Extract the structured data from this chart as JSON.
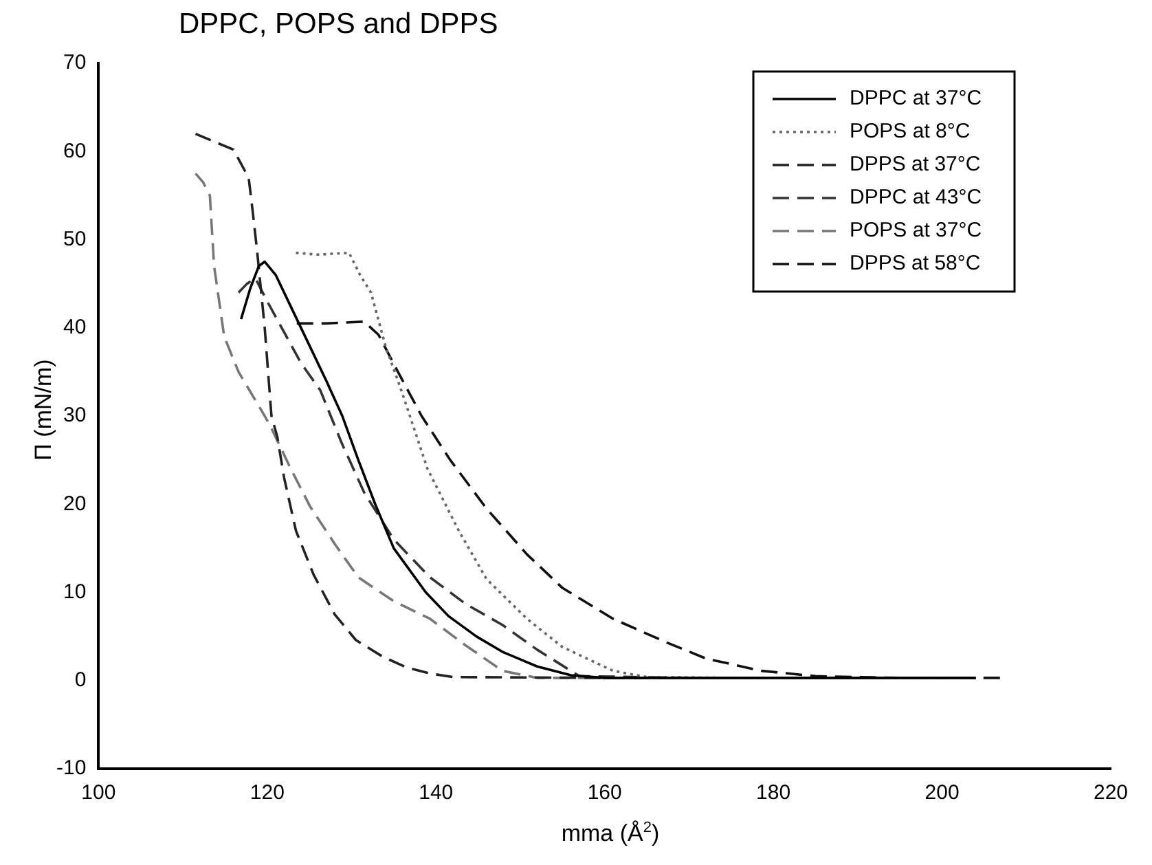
{
  "chart_data": {
    "type": "line",
    "title": "DPPC, POPS and DPPS",
    "xlabel": "mma (Å$^{2}$)",
    "ylabel": "Π (mN/m)",
    "xlim": [
      100,
      220
    ],
    "xticks": [
      100,
      120,
      140,
      160,
      180,
      200,
      220
    ],
    "ylim": [
      -10,
      70
    ],
    "yticks": [
      -10,
      0,
      10,
      20,
      30,
      40,
      50,
      60,
      70
    ],
    "grid": false,
    "legend": "top right",
    "marker": "none",
    "series": [
      {
        "name": "DPPC at 37°C",
        "color": "#000000",
        "line_style": "solid",
        "x": [
          116.9,
          118,
          119,
          119.7,
          121,
          123,
          125,
          127,
          128.9,
          130.8,
          132.8,
          135,
          138.8,
          141.5,
          144.8,
          148,
          152,
          156,
          160,
          170,
          180,
          190,
          204
        ],
        "values": [
          41,
          44.5,
          47,
          47.5,
          46,
          42,
          38,
          34,
          30,
          25,
          20,
          15,
          10,
          7.3,
          5,
          3.2,
          1.6,
          0.6,
          0.3,
          0.3,
          0.3,
          0.3,
          0.3
        ]
      },
      {
        "name": "POPS at 8°C",
        "color": "#666666",
        "line_style": "dotted",
        "x": [
          123.4,
          126,
          129.7,
          131,
          132.3,
          134,
          135.9,
          139,
          142.7,
          146,
          150.8,
          155,
          161,
          165,
          175,
          190,
          204
        ],
        "values": [
          48.5,
          48.3,
          48.5,
          46,
          44,
          38,
          32.9,
          24,
          17,
          11.5,
          7,
          3.8,
          1.1,
          0.4,
          0.3,
          0.3,
          0.3
        ]
      },
      {
        "name": "DPPS at 37°C",
        "color": "#222222",
        "line_style": "dashed",
        "x": [
          111.5,
          114,
          116,
          117.8,
          118.3,
          118.8,
          119.7,
          120.5,
          121.2,
          122,
          123.4,
          125.5,
          128,
          130.5,
          133.7,
          136.5,
          139.3,
          142,
          160,
          180,
          204
        ],
        "values": [
          62,
          61,
          60.2,
          57,
          53,
          48.7,
          40,
          30,
          27.6,
          23,
          17,
          12,
          7.5,
          4.6,
          2.7,
          1.5,
          0.8,
          0.4,
          0.3,
          0.3,
          0.3
        ]
      },
      {
        "name": "DPPC at 43°C",
        "color": "#333333",
        "line_style": "dashed",
        "x": [
          116.6,
          117.6,
          118.6,
          120,
          122,
          124,
          126.3,
          128.8,
          131.5,
          135,
          139.3,
          143.5,
          147.9,
          152,
          157,
          170,
          190,
          204
        ],
        "values": [
          44,
          45,
          45.6,
          43,
          39.5,
          36,
          32.9,
          27,
          21.3,
          16,
          11.7,
          8.7,
          6.3,
          3.5,
          0.5,
          0.3,
          0.3,
          0.3
        ]
      },
      {
        "name": "POPS at 37°C",
        "color": "#777777",
        "line_style": "dashed",
        "x": [
          111.5,
          112.4,
          113.2,
          113.7,
          114.9,
          116.6,
          119.7,
          120.5,
          122.8,
          125.1,
          128,
          130.8,
          135,
          139.3,
          143.5,
          147.9,
          152,
          170,
          190,
          204
        ],
        "values": [
          57.5,
          56.5,
          55,
          47,
          39,
          35,
          30,
          28.6,
          24,
          19.7,
          15.5,
          11.7,
          9,
          7,
          4,
          1.1,
          0.3,
          0.3,
          0.3,
          0.3
        ]
      },
      {
        "name": "DPPS at 58°C",
        "color": "#111111",
        "line_style": "dashed",
        "x": [
          123.5,
          127,
          131.5,
          133.2,
          135.5,
          138.3,
          141.7,
          146,
          150.8,
          155,
          161,
          167.4,
          172,
          178.6,
          185,
          195,
          207
        ],
        "values": [
          40.5,
          40.5,
          40.7,
          39.2,
          35,
          30,
          25,
          19.5,
          14.3,
          10.5,
          7,
          4.3,
          2.5,
          1.1,
          0.5,
          0.3,
          0.3
        ]
      }
    ]
  }
}
